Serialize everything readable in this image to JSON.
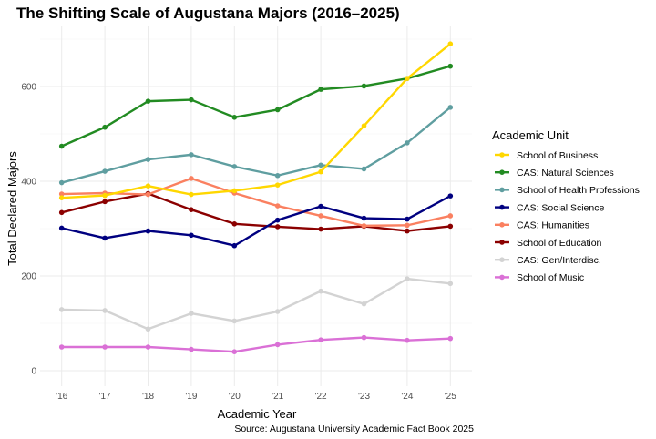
{
  "chart_data": {
    "type": "line",
    "title": "The Shifting Scale of Augustana Majors (2016–2025)",
    "xlabel": "Academic Year",
    "ylabel": "Total Declared Majors",
    "caption": "Source: Augustana University Academic Fact Book 2025",
    "categories": [
      "'16",
      "'17",
      "'18",
      "'19",
      "'20",
      "'21",
      "'22",
      "'23",
      "'24",
      "'25"
    ],
    "ylim": [
      0,
      700
    ],
    "yticks": [
      0,
      200,
      400,
      600
    ],
    "grid": true,
    "legend_title": "Academic Unit",
    "legend_position": "right",
    "series": [
      {
        "name": "School of Business",
        "color": "#FFD700",
        "values": [
          365,
          370,
          390,
          372,
          380,
          392,
          420,
          517,
          617,
          690
        ]
      },
      {
        "name": "CAS: Natural Sciences",
        "color": "#228B22",
        "values": [
          474,
          514,
          569,
          572,
          535,
          551,
          594,
          601,
          617,
          643
        ]
      },
      {
        "name": "School of Health Professions",
        "color": "#5F9EA0",
        "values": [
          397,
          421,
          446,
          456,
          431,
          412,
          434,
          426,
          481,
          556
        ]
      },
      {
        "name": "CAS: Social Science",
        "color": "#000080",
        "values": [
          301,
          280,
          295,
          286,
          264,
          318,
          347,
          322,
          320,
          369
        ]
      },
      {
        "name": "CAS: Humanities",
        "color": "#FA8060",
        "values": [
          373,
          375,
          372,
          406,
          375,
          348,
          327,
          306,
          307,
          327
        ]
      },
      {
        "name": "School of Education",
        "color": "#8B0000",
        "values": [
          334,
          357,
          374,
          340,
          310,
          304,
          299,
          305,
          295,
          305
        ]
      },
      {
        "name": "CAS: Gen/Interdisc.",
        "color": "#D3D3D3",
        "values": [
          129,
          127,
          88,
          121,
          105,
          125,
          168,
          141,
          194,
          184
        ]
      },
      {
        "name": "School of Music",
        "color": "#DA70D6",
        "values": [
          50,
          50,
          50,
          45,
          40,
          55,
          65,
          70,
          64,
          68
        ]
      }
    ]
  }
}
